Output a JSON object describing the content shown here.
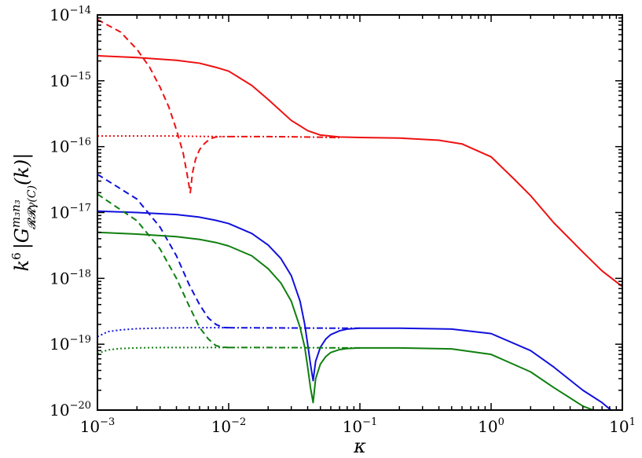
{
  "chart_data": {
    "type": "line",
    "xlabel": "κ",
    "ylabel_prefix": "k",
    "ylabel_prefix_exp": "6",
    "ylabel_body": "|G",
    "ylabel_sup": "m₃n₃",
    "ylabel_sub": "𝓡𝓡γ(C)",
    "ylabel_tail": "(k)|",
    "x_scale": "log",
    "y_scale": "log",
    "xlim": [
      0.001,
      10
    ],
    "ylim": [
      1e-20,
      1e-14
    ],
    "grid": false,
    "x_ticks": [
      {
        "value": 0.001,
        "base": "10",
        "exp": "−3"
      },
      {
        "value": 0.01,
        "base": "10",
        "exp": "−2"
      },
      {
        "value": 0.1,
        "base": "10",
        "exp": "−1"
      },
      {
        "value": 1,
        "base": "10",
        "exp": "0"
      },
      {
        "value": 10,
        "base": "10",
        "exp": "1"
      }
    ],
    "y_ticks": [
      {
        "value": 1e-14,
        "base": "10",
        "exp": "−14"
      },
      {
        "value": 1e-15,
        "base": "10",
        "exp": "−15"
      },
      {
        "value": 1e-16,
        "base": "10",
        "exp": "−16"
      },
      {
        "value": 1e-17,
        "base": "10",
        "exp": "−17"
      },
      {
        "value": 1e-18,
        "base": "10",
        "exp": "−18"
      },
      {
        "value": 1e-19,
        "base": "10",
        "exp": "−19"
      },
      {
        "value": 1e-20,
        "base": "10",
        "exp": "−20"
      }
    ],
    "series": [
      {
        "color": "#ee1111",
        "style": "solid",
        "x": [
          0.001,
          0.002,
          0.004,
          0.006,
          0.008,
          0.01,
          0.015,
          0.02,
          0.03,
          0.04,
          0.05,
          0.07,
          0.1,
          0.2,
          0.4,
          0.6,
          1.0,
          1.5,
          2,
          3,
          5,
          7,
          10
        ],
        "y": [
          2.4e-15,
          2.25e-15,
          2.05e-15,
          1.85e-15,
          1.6e-15,
          1.4e-15,
          8.5e-16,
          5.2e-16,
          2.5e-16,
          1.75e-16,
          1.5e-16,
          1.4e-16,
          1.38e-16,
          1.35e-16,
          1.25e-16,
          1.1e-16,
          7e-17,
          3.2e-17,
          1.8e-17,
          7e-18,
          2.5e-18,
          1.3e-18,
          7.5e-19
        ]
      },
      {
        "color": "#ee1111",
        "style": "dashed",
        "x": [
          0.001,
          0.0015,
          0.002,
          0.0025,
          0.003,
          0.0035,
          0.004,
          0.0045,
          0.0048,
          0.0051,
          0.0053,
          0.0056,
          0.006,
          0.0065,
          0.007,
          0.0075,
          0.008,
          0.009
        ],
        "y": [
          8.5e-15,
          5.5e-15,
          3e-15,
          1.6e-15,
          8e-16,
          4e-16,
          1.8e-16,
          8e-17,
          4e-17,
          2e-17,
          4e-17,
          6.5e-17,
          9e-17,
          1.1e-16,
          1.25e-16,
          1.35e-16,
          1.4e-16,
          1.42e-16
        ]
      },
      {
        "color": "#ee1111",
        "style": "dotted",
        "x": [
          0.001,
          0.002,
          0.004,
          0.006,
          0.01
        ],
        "y": [
          1.45e-16,
          1.45e-16,
          1.45e-16,
          1.43e-16,
          1.42e-16
        ]
      },
      {
        "color": "#ee1111",
        "style": "dashdot",
        "x": [
          0.01,
          0.02,
          0.03,
          0.05,
          0.07
        ],
        "y": [
          1.42e-16,
          1.42e-16,
          1.41e-16,
          1.39e-16,
          1.37e-16
        ]
      },
      {
        "color": "#1111dd",
        "style": "solid",
        "x": [
          0.001,
          0.002,
          0.004,
          0.006,
          0.008,
          0.01,
          0.015,
          0.02,
          0.025,
          0.03,
          0.035,
          0.038,
          0.04,
          0.042,
          0.044,
          0.046,
          0.05,
          0.055,
          0.06,
          0.07,
          0.08,
          0.1,
          0.2,
          0.5,
          1,
          2,
          3,
          5,
          7,
          9
        ],
        "y": [
          1.05e-17,
          1e-17,
          9.3e-18,
          8.5e-18,
          7.6e-18,
          6.8e-18,
          4.8e-18,
          3.2e-18,
          2e-18,
          1.1e-18,
          4.5e-19,
          2e-19,
          1e-19,
          5e-20,
          2.8e-20,
          5.5e-20,
          9e-20,
          1.2e-19,
          1.4e-19,
          1.6e-19,
          1.7e-19,
          1.75e-19,
          1.75e-19,
          1.7e-19,
          1.45e-19,
          8e-20,
          4.5e-20,
          2e-20,
          1.3e-20,
          8.5e-21
        ]
      },
      {
        "color": "#1111dd",
        "style": "dashed",
        "x": [
          0.001,
          0.002,
          0.003,
          0.004,
          0.005,
          0.006,
          0.007,
          0.008,
          0.009,
          0.01
        ],
        "y": [
          3.8e-17,
          1.6e-17,
          6e-18,
          2.2e-18,
          8e-19,
          4e-19,
          2.5e-19,
          2e-19,
          1.8e-19,
          1.78e-19
        ]
      },
      {
        "color": "#1111dd",
        "style": "dotted",
        "x": [
          0.001,
          0.0012,
          0.0015,
          0.002,
          0.003,
          0.005,
          0.008,
          0.01
        ],
        "y": [
          1.3e-19,
          1.55e-19,
          1.65e-19,
          1.72e-19,
          1.76e-19,
          1.78e-19,
          1.78e-19,
          1.78e-19
        ]
      },
      {
        "color": "#1111dd",
        "style": "dashdot",
        "x": [
          0.01,
          0.02,
          0.04,
          0.07,
          0.1
        ],
        "y": [
          1.78e-19,
          1.77e-19,
          1.76e-19,
          1.75e-19,
          1.75e-19
        ]
      },
      {
        "color": "#0f7f0f",
        "style": "solid",
        "x": [
          0.001,
          0.002,
          0.004,
          0.006,
          0.008,
          0.01,
          0.015,
          0.02,
          0.025,
          0.03,
          0.035,
          0.038,
          0.04,
          0.042,
          0.044,
          0.046,
          0.05,
          0.055,
          0.06,
          0.07,
          0.08,
          0.1,
          0.2,
          0.5,
          1,
          2,
          3,
          5,
          6
        ],
        "y": [
          5e-18,
          4.7e-18,
          4.3e-18,
          3.9e-18,
          3.5e-18,
          3.1e-18,
          2.2e-18,
          1.4e-18,
          8.5e-19,
          4.5e-19,
          1.8e-19,
          9e-20,
          4.5e-20,
          2.2e-20,
          1.3e-20,
          3e-20,
          5e-20,
          6.5e-20,
          7.5e-20,
          8.3e-20,
          8.6e-20,
          8.8e-20,
          8.8e-20,
          8.5e-20,
          7e-20,
          3.8e-20,
          2.2e-20,
          1.15e-20,
          1e-20
        ]
      },
      {
        "color": "#0f7f0f",
        "style": "dashed",
        "x": [
          0.001,
          0.002,
          0.003,
          0.004,
          0.005,
          0.006,
          0.007,
          0.008,
          0.009,
          0.01
        ],
        "y": [
          1.9e-17,
          7.5e-18,
          2.8e-18,
          1e-18,
          3.8e-19,
          1.8e-19,
          1.2e-19,
          9.5e-20,
          9e-20,
          8.9e-20
        ]
      },
      {
        "color": "#0f7f0f",
        "style": "dotted",
        "x": [
          0.001,
          0.0012,
          0.0015,
          0.002,
          0.003,
          0.005,
          0.01
        ],
        "y": [
          7.2e-20,
          8.2e-20,
          8.6e-20,
          8.8e-20,
          8.9e-20,
          8.9e-20,
          8.9e-20
        ]
      },
      {
        "color": "#0f7f0f",
        "style": "dashdot",
        "x": [
          0.01,
          0.02,
          0.04,
          0.07,
          0.1
        ],
        "y": [
          8.9e-20,
          8.9e-20,
          8.85e-20,
          8.8e-20,
          8.8e-20
        ]
      }
    ]
  }
}
